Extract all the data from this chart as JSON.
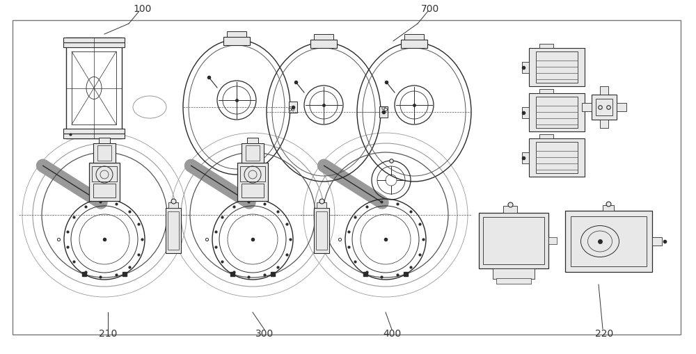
{
  "bg_color": "#ffffff",
  "dc": "#2a2a2a",
  "lc": "#555555",
  "lightc": "#999999",
  "lighterc": "#dddddd",
  "grayfc": "#e8e8e8",
  "label_fontsize": 10,
  "figsize": [
    10.0,
    5.1
  ],
  "dpi": 100
}
